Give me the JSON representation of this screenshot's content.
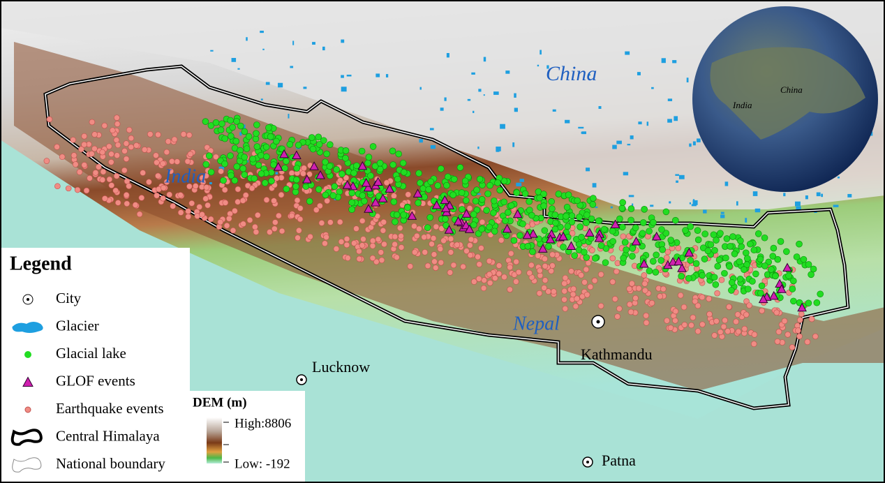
{
  "map": {
    "labels": {
      "china": "China",
      "india": "India",
      "nepal": "Nepal"
    },
    "cities": [
      "Lucknow",
      "Kathmandu",
      "Patna"
    ],
    "globe": {
      "india": "India",
      "china": "China"
    }
  },
  "legend": {
    "title": "Legend",
    "items": [
      "City",
      "Glacier",
      "Glacial lake",
      "GLOF events",
      "Earthquake events",
      "Central Himalaya",
      "National boundary"
    ]
  },
  "dem": {
    "title": "DEM (m)",
    "high": "High:8806",
    "low": "Low: -192"
  }
}
